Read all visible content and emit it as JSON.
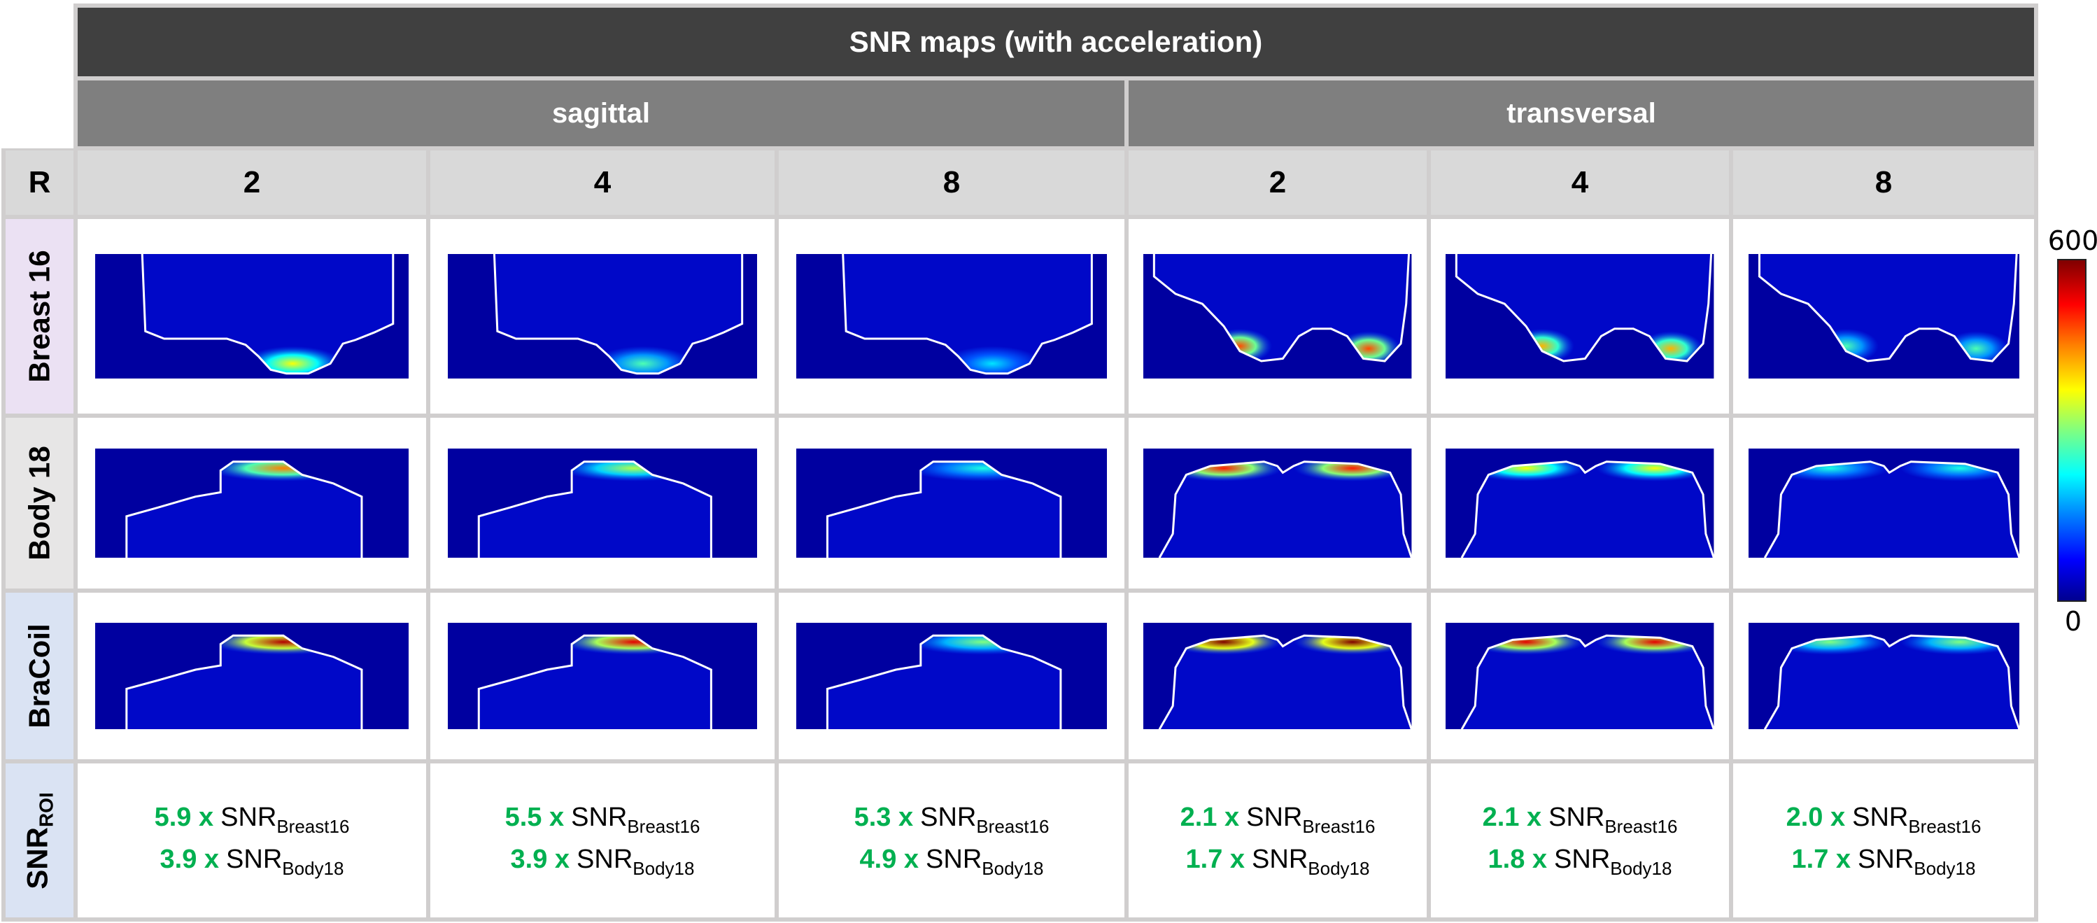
{
  "title": "SNR maps (with acceleration)",
  "views": [
    "sagittal",
    "transversal"
  ],
  "r_label": "R",
  "r_values": [
    "2",
    "4",
    "8",
    "2",
    "4",
    "8"
  ],
  "rows": [
    "Breast 16",
    "Body 18",
    "BraCoil"
  ],
  "snr_row": {
    "label": "SNR",
    "label_sub": "ROI"
  },
  "ref_labels": {
    "snr": "SNR",
    "breast": "Breast16",
    "body": "Body18"
  },
  "snr_cells": [
    {
      "breast_factor": "5.9 x",
      "body_factor": "3.9 x"
    },
    {
      "breast_factor": "5.5 x",
      "body_factor": "3.9 x"
    },
    {
      "breast_factor": "5.3 x",
      "body_factor": "4.9 x"
    },
    {
      "breast_factor": "2.1 x",
      "body_factor": "1.7 x"
    },
    {
      "breast_factor": "2.1 x",
      "body_factor": "1.8 x"
    },
    {
      "breast_factor": "2.0 x",
      "body_factor": "1.7 x"
    }
  ],
  "colorbar": {
    "max": "600",
    "min": "0",
    "colormap": "jet"
  },
  "colors": {
    "title_bg": "#404040",
    "view_bg": "#7f7f7f",
    "header_bg": "#d9d9d9",
    "factor_green": "#00b050",
    "grid": "#d0cece"
  }
}
